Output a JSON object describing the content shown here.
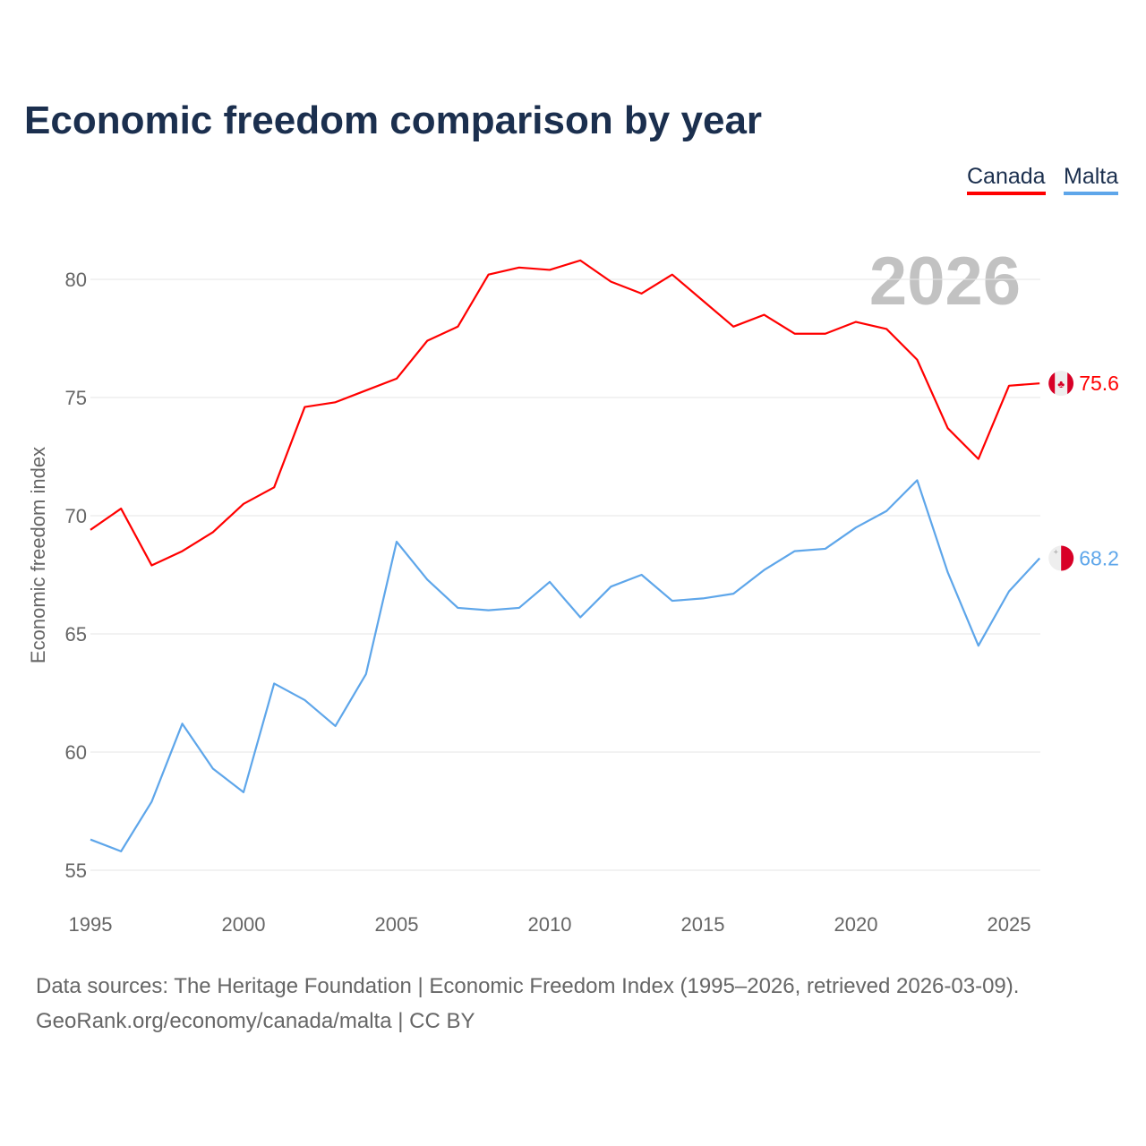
{
  "title": "Economic freedom comparison by year",
  "year_watermark": "2026",
  "footer": {
    "sources": "Data sources: The Heritage Foundation | Economic Freedom Index (1995–2026, retrieved 2026-03-09).",
    "credit": "GeoRank.org/economy/canada/malta | CC BY"
  },
  "chart_data": {
    "type": "line",
    "title": "Economic freedom comparison by year",
    "xlabel": "",
    "ylabel": "Economic freedom index",
    "xlim": [
      1995,
      2026
    ],
    "ylim": [
      55,
      82
    ],
    "yticks": [
      55,
      60,
      65,
      70,
      75,
      80
    ],
    "xticks": [
      1995,
      2000,
      2005,
      2010,
      2015,
      2020,
      2025
    ],
    "grid": true,
    "legend_placement": "top-right",
    "x": [
      1995,
      1996,
      1997,
      1998,
      1999,
      2000,
      2001,
      2002,
      2003,
      2004,
      2005,
      2006,
      2007,
      2008,
      2009,
      2010,
      2011,
      2012,
      2013,
      2014,
      2015,
      2016,
      2017,
      2018,
      2019,
      2020,
      2021,
      2022,
      2023,
      2024,
      2025,
      2026
    ],
    "series": [
      {
        "name": "Canada",
        "color": "#ff0000",
        "end_label": "75.6",
        "values": [
          69.4,
          70.3,
          67.9,
          68.5,
          69.3,
          70.5,
          71.2,
          74.6,
          74.8,
          75.3,
          75.8,
          77.4,
          78.0,
          80.2,
          80.5,
          80.4,
          80.8,
          79.9,
          79.4,
          80.2,
          79.1,
          78.0,
          78.5,
          77.7,
          77.7,
          78.2,
          77.9,
          76.6,
          73.7,
          72.4,
          75.5,
          75.6
        ]
      },
      {
        "name": "Malta",
        "color": "#5ea6ea",
        "end_label": "68.2",
        "values": [
          56.3,
          55.8,
          57.9,
          61.2,
          59.3,
          58.3,
          62.9,
          62.2,
          61.1,
          63.3,
          68.9,
          67.3,
          66.1,
          66.0,
          66.1,
          67.2,
          65.7,
          67.0,
          67.5,
          66.4,
          66.5,
          66.7,
          67.7,
          68.5,
          68.6,
          69.5,
          70.2,
          71.5,
          67.6,
          64.5,
          66.8,
          68.2
        ]
      }
    ]
  }
}
